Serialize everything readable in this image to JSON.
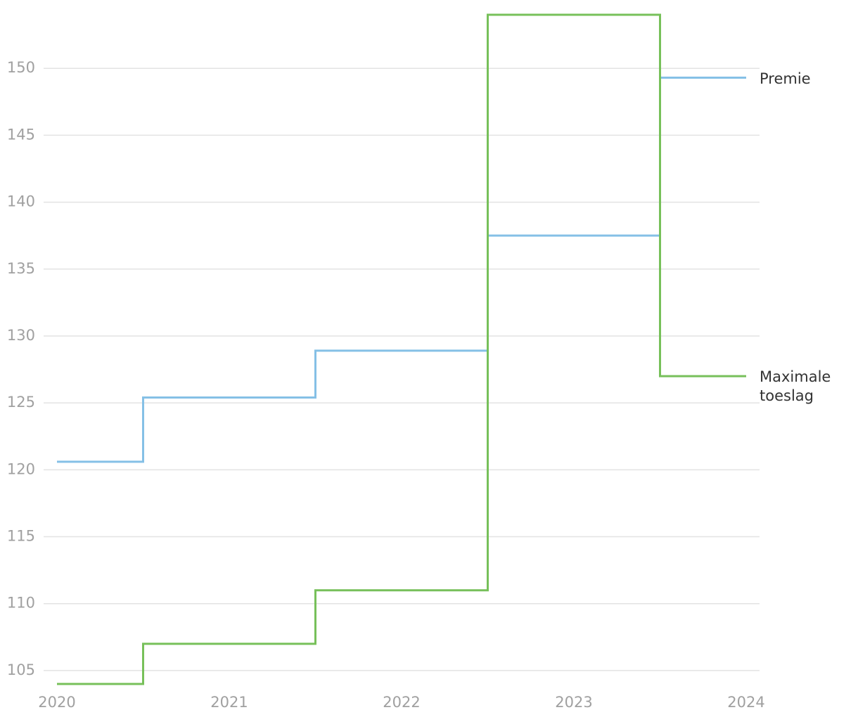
{
  "chart_data": {
    "type": "line",
    "step": "mid",
    "x": [
      2020,
      2021,
      2022,
      2023,
      2024
    ],
    "series": [
      {
        "name": "Premie",
        "color": "#85c0e6",
        "values": [
          120.6,
          125.4,
          128.9,
          137.5,
          149.3
        ]
      },
      {
        "name": "Maximale toeslag",
        "color": "#77c05a",
        "values": [
          104,
          107,
          111,
          154,
          127
        ]
      }
    ],
    "xlim": [
      2020,
      2024
    ],
    "xticks": [
      2020,
      2021,
      2022,
      2023,
      2024
    ],
    "ylim": [
      103,
      155
    ],
    "yticks": [
      105,
      110,
      115,
      120,
      125,
      130,
      135,
      140,
      145,
      150
    ],
    "grid": true,
    "legend": "line-end"
  }
}
